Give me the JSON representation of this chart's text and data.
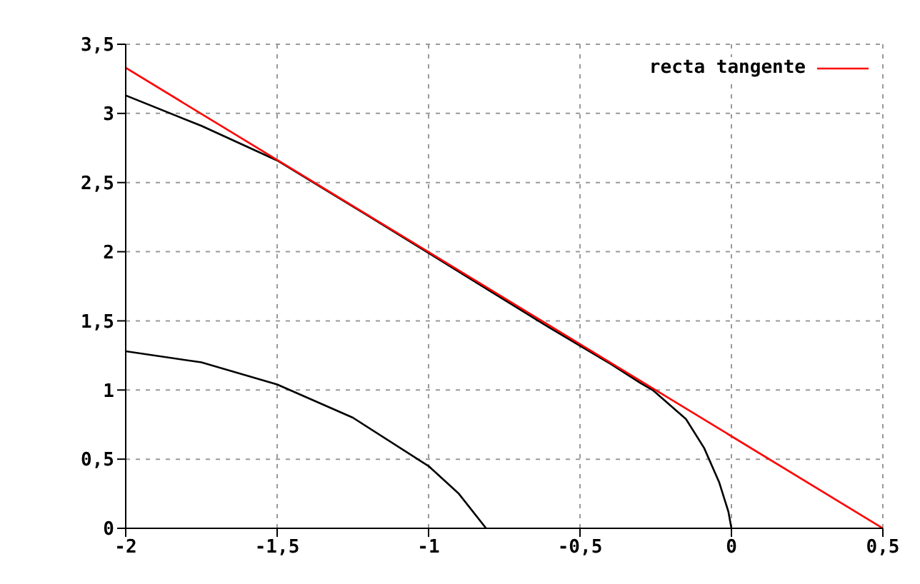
{
  "chart_data": {
    "type": "line",
    "xlim": [
      -2,
      0.5
    ],
    "ylim": [
      0,
      3.5
    ],
    "xticks": [
      -2,
      {
        "value": -1.5,
        "label": "-1,5"
      },
      -1,
      {
        "value": -0.5,
        "label": "-0,5"
      },
      0,
      {
        "value": 0.5,
        "label": "0,5"
      }
    ],
    "yticks": [
      0,
      {
        "value": 0.5,
        "label": "0,5"
      },
      1,
      {
        "value": 1.5,
        "label": "1,5"
      },
      2,
      {
        "value": 2.5,
        "label": "2,5"
      },
      3,
      {
        "value": 3.5,
        "label": "3,5"
      }
    ],
    "grid": true,
    "legend": "top right",
    "line_style": "solid",
    "marker": "none",
    "series": [
      {
        "color": "#000000",
        "x": [
          -2,
          -1.75,
          -1.5,
          -1.2,
          -1,
          -0.8,
          -0.6,
          -0.4,
          -0.3,
          -0.26,
          -0.15,
          -0.09,
          -0.04,
          -0.01,
          0
        ],
        "values": [
          3.13,
          2.91,
          2.66,
          2.26,
          1.99,
          1.72,
          1.45,
          1.19,
          1.05,
          1.0,
          0.79,
          0.58,
          0.33,
          0.12,
          0
        ]
      },
      {
        "color": "#000000",
        "x": [
          -2,
          -1.75,
          -1.5,
          -1.25,
          -1,
          -0.9,
          -0.81
        ],
        "values": [
          1.28,
          1.2,
          1.04,
          0.8,
          0.45,
          0.25,
          0
        ]
      },
      {
        "name": "recta tangente",
        "color": "#ff0000",
        "x": [
          -2,
          0.5
        ],
        "values": [
          3.33,
          0
        ]
      }
    ]
  }
}
